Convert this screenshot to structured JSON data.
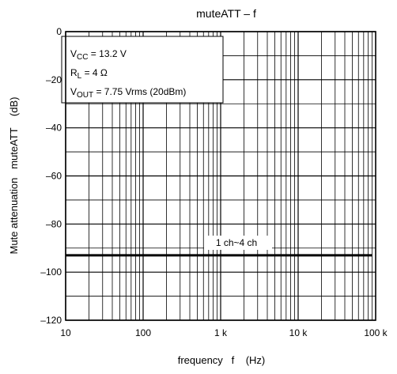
{
  "chart_data": {
    "type": "line",
    "title": "muteATT – f",
    "xlabel": "frequency   f    (Hz)",
    "ylabel": "Mute attenuation   muteATT    (dB)",
    "x_scale": "log",
    "xlim": [
      10,
      100000
    ],
    "ylim": [
      -120,
      0
    ],
    "x_ticks": [
      {
        "value": 10,
        "label": "10"
      },
      {
        "value": 100,
        "label": "100"
      },
      {
        "value": 1000,
        "label": "1 k"
      },
      {
        "value": 10000,
        "label": "10 k"
      },
      {
        "value": 100000,
        "label": "100 k"
      }
    ],
    "y_ticks": [
      {
        "value": 0,
        "label": "0"
      },
      {
        "value": -20,
        "label": "–20"
      },
      {
        "value": -40,
        "label": "–40"
      },
      {
        "value": -60,
        "label": "–60"
      },
      {
        "value": -80,
        "label": "–80"
      },
      {
        "value": -100,
        "label": "–100"
      },
      {
        "value": -120,
        "label": "–120"
      }
    ],
    "grid": true,
    "conditions": {
      "vcc": {
        "sym": "V",
        "sub": "CC",
        "text": " = 13.2 V"
      },
      "rl": {
        "sym": "R",
        "sub": "L",
        "text": " = 4 Ω"
      },
      "vout": {
        "sym": "V",
        "sub": "OUT",
        "text": " = 7.75 Vrms (20dBm)"
      }
    },
    "series": [
      {
        "name": "1 ch~4 ch",
        "x": [
          10,
          20,
          50,
          100,
          200,
          500,
          1000,
          2000,
          5000,
          10000,
          20000,
          50000,
          90000
        ],
        "y": [
          -93,
          -93,
          -93,
          -93,
          -93,
          -93,
          -93,
          -93,
          -93,
          -93,
          -93,
          -93,
          -93
        ]
      }
    ]
  }
}
